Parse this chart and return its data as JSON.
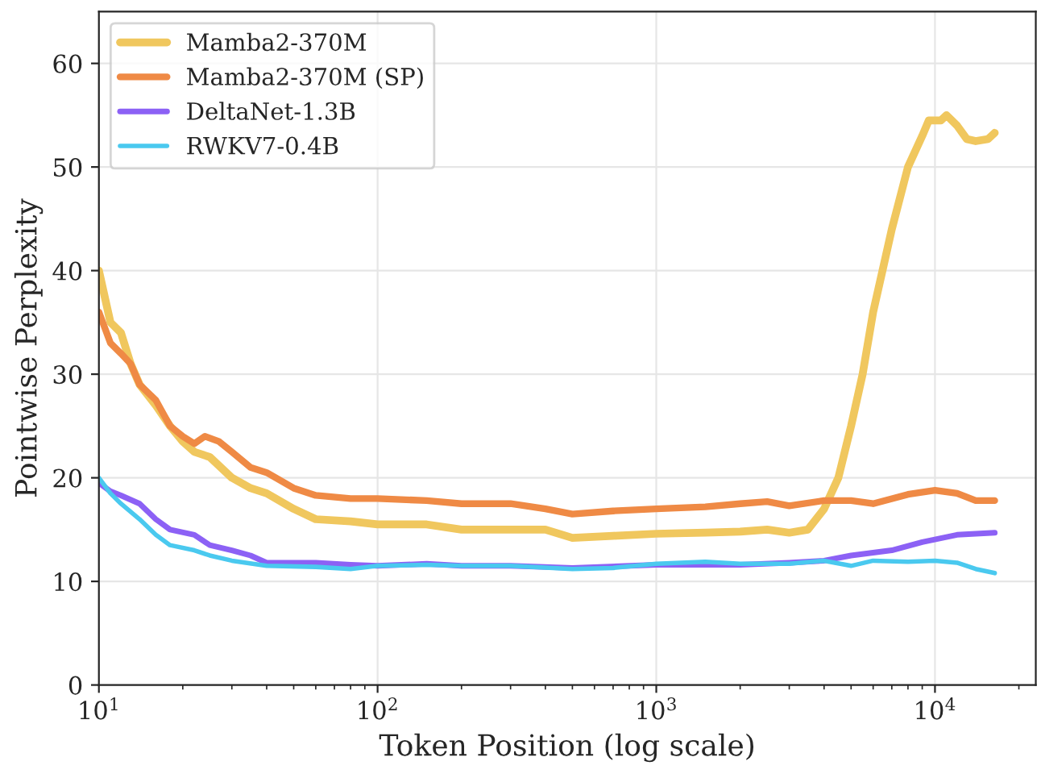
{
  "chart_data": {
    "type": "line",
    "xlabel": "Token Position (log scale)",
    "ylabel": "Pointwise Perplexity",
    "log": "x",
    "grid": true,
    "legend": "top left",
    "line_style": "solid",
    "marker": "none",
    "xlim": [
      10,
      23000
    ],
    "ylim": [
      0,
      65
    ],
    "xticks": [
      {
        "value": 10,
        "label": "10$^{1}$"
      },
      {
        "value": 100,
        "label": "10$^{2}$"
      },
      {
        "value": 1000,
        "label": "10$^{3}$"
      },
      {
        "value": 10000,
        "label": "10$^{4}$"
      }
    ],
    "yticks": [
      0,
      10,
      20,
      30,
      40,
      50,
      60
    ],
    "series": [
      {
        "name": "Mamba2-370M",
        "color": "#f0c75e",
        "x": [
          10,
          11,
          12,
          13,
          14,
          16,
          18,
          20,
          22,
          25,
          30,
          35,
          40,
          50,
          60,
          80,
          100,
          150,
          200,
          300,
          400,
          500,
          700,
          1000,
          1500,
          2000,
          2500,
          3000,
          3500,
          4000,
          4500,
          5000,
          5500,
          6000,
          7000,
          8000,
          9000,
          9500,
          10500,
          11000,
          12000,
          13000,
          14000,
          15500,
          16384
        ],
        "values": [
          40,
          35,
          34,
          31,
          29,
          27,
          25,
          23.5,
          22.5,
          22,
          20,
          19,
          18.5,
          17,
          16,
          15.8,
          15.5,
          15.5,
          15,
          15,
          15,
          14.2,
          14.4,
          14.6,
          14.7,
          14.8,
          15,
          14.7,
          15,
          17,
          20,
          25,
          30,
          36,
          44,
          50,
          53,
          54.5,
          54.5,
          55,
          54,
          52.7,
          52.5,
          52.7,
          53.3
        ]
      },
      {
        "name": "Mamba2-370M (SP)",
        "color": "#ef8a45",
        "x": [
          10,
          11,
          12,
          13,
          14,
          16,
          18,
          20,
          22,
          24,
          27,
          30,
          35,
          40,
          50,
          60,
          80,
          100,
          150,
          200,
          300,
          400,
          500,
          700,
          1000,
          1500,
          2000,
          2500,
          3000,
          4000,
          5000,
          6000,
          8000,
          10000,
          12000,
          14000,
          16384
        ],
        "values": [
          36,
          33,
          32,
          31,
          29,
          27.5,
          25,
          24,
          23.3,
          24,
          23.5,
          22.5,
          21,
          20.5,
          19,
          18.3,
          18,
          18,
          17.8,
          17.5,
          17.5,
          17,
          16.5,
          16.8,
          17,
          17.2,
          17.5,
          17.7,
          17.3,
          17.8,
          17.8,
          17.5,
          18.4,
          18.8,
          18.5,
          17.8,
          17.8
        ]
      },
      {
        "name": "DeltaNet-1.3B",
        "color": "#8c61f5",
        "x": [
          10,
          11,
          12,
          14,
          16,
          18,
          22,
          25,
          30,
          35,
          40,
          60,
          80,
          100,
          150,
          200,
          300,
          500,
          1000,
          2000,
          3000,
          4000,
          5000,
          7000,
          9000,
          12000,
          16384
        ],
        "values": [
          19.5,
          18.7,
          18.3,
          17.5,
          16,
          15,
          14.5,
          13.5,
          13,
          12.5,
          11.8,
          11.8,
          11.6,
          11.5,
          11.7,
          11.5,
          11.5,
          11.3,
          11.6,
          11.6,
          11.8,
          12,
          12.5,
          13,
          13.8,
          14.5,
          14.7
        ]
      },
      {
        "name": "RWKV7-0.4B",
        "color": "#4ac9ef",
        "x": [
          10,
          11,
          12,
          14,
          16,
          18,
          22,
          25,
          30,
          40,
          60,
          80,
          100,
          150,
          200,
          300,
          500,
          700,
          1000,
          1500,
          2000,
          3000,
          4000,
          5000,
          6000,
          8000,
          10000,
          12000,
          14000,
          16384
        ],
        "values": [
          20,
          18.5,
          17.5,
          16,
          14.5,
          13.5,
          13,
          12.5,
          12,
          11.5,
          11.4,
          11.2,
          11.5,
          11.6,
          11.5,
          11.5,
          11.2,
          11.3,
          11.7,
          11.9,
          11.7,
          11.7,
          12,
          11.5,
          12,
          11.9,
          12,
          11.8,
          11.2,
          10.8
        ]
      }
    ]
  }
}
